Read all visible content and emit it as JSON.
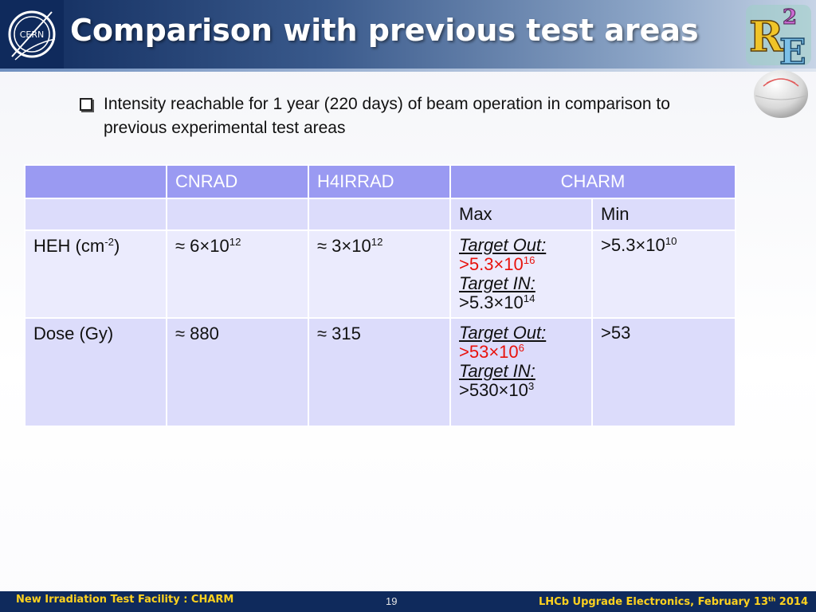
{
  "header": {
    "title": "Comparison with previous test areas",
    "logo_text": "CERN",
    "r2e_logo": "R2E"
  },
  "bullet": {
    "text": "Intensity reachable for 1 year (220 days) of beam operation in comparison to previous experimental test areas"
  },
  "table": {
    "columns": [
      "",
      "CNRAD",
      "H4IRRAD",
      "CHARM"
    ],
    "subcolumns": [
      "Max",
      "Min"
    ],
    "rows": [
      {
        "label": "HEH (cm",
        "label_sup": "-2",
        "label_tail": ")",
        "cnrad": "≈ 6×10",
        "cnrad_sup": "12",
        "h4irrad": "≈ 3×10",
        "h4irrad_sup": "12",
        "max_target_out": "Target Out:",
        "max_out_value": ">5.3×10",
        "max_out_sup": "16",
        "max_target_in": "Target IN:",
        "max_in_value": ">5.3×10",
        "max_in_sup": "14",
        "min_value": ">5.3×10",
        "min_sup": "10"
      },
      {
        "label": "Dose (Gy)",
        "cnrad": "≈ 880",
        "h4irrad": "≈ 315",
        "max_target_out": "Target Out:",
        "max_out_value": ">53×10",
        "max_out_sup": "6",
        "max_target_in": "Target IN:",
        "max_in_value": ">530×10",
        "max_in_sup": "3",
        "min_value": ">53"
      }
    ]
  },
  "footer": {
    "left": "New Irradiation Test Facility : CHARM",
    "page": "19",
    "right_prefix": "LHCb Upgrade Electronics, February 13",
    "right_sup": "th",
    "right_suffix": " 2014"
  },
  "colors": {
    "header_dark": "#0f2a5c",
    "table_head": "#9a9af2",
    "table_row_a": "#ebebfd",
    "table_row_b": "#dcdcfb",
    "highlight_red": "#e8120c",
    "footer_text": "#ffd21f"
  },
  "icons": [
    "cern-logo-icon",
    "r2e-logo-icon",
    "checkbox-bullet-icon",
    "sphere-icon"
  ]
}
